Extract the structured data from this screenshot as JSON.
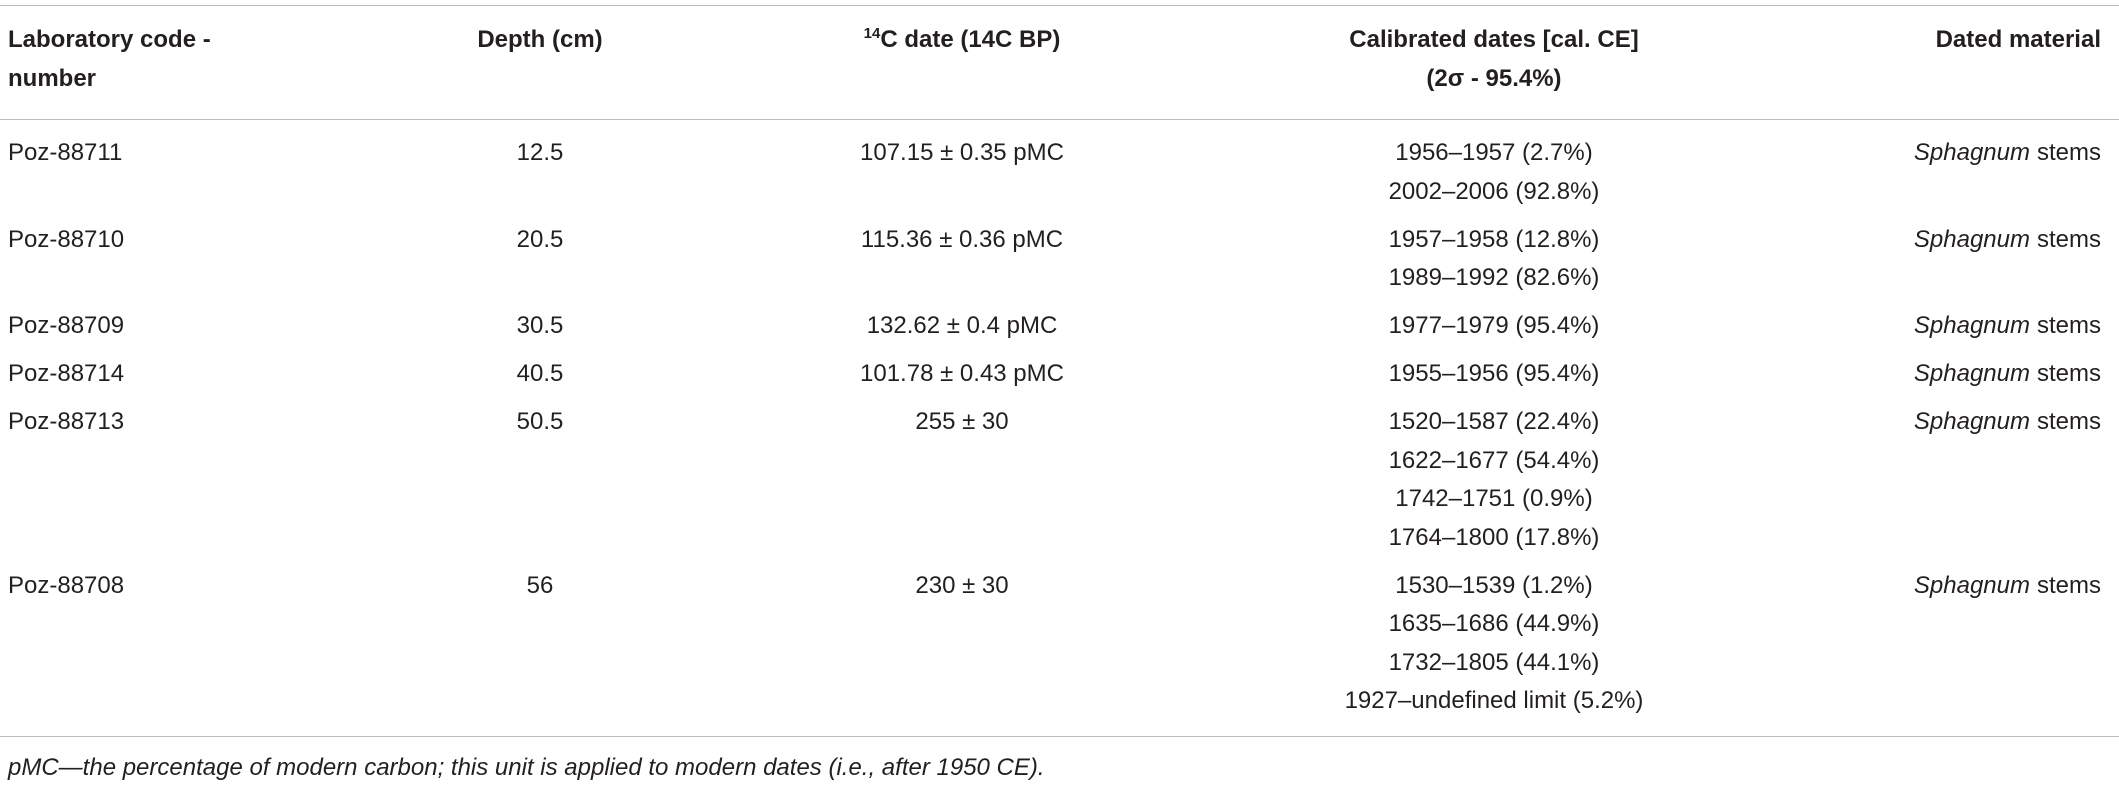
{
  "table": {
    "headers": [
      {
        "text": "Laboratory code - number"
      },
      {
        "text": "Depth (cm)"
      },
      {
        "sup": "14",
        "text": "C date (14C BP)"
      },
      {
        "text": "Calibrated dates [cal. CE] (2σ - 95.4%)"
      },
      {
        "text": "Dated material"
      }
    ],
    "rows": [
      {
        "code": "Poz-88711",
        "depth": 12.5,
        "date": "107.15 ± 0.35 pMC",
        "calibrated": [
          "1956–1957 (2.7%)",
          "2002–2006 (92.8%)"
        ],
        "material": {
          "genus": "Sphagnum",
          "rest": "stems"
        }
      },
      {
        "code": "Poz-88710",
        "depth": 20.5,
        "date": "115.36 ± 0.36 pMC",
        "calibrated": [
          "1957–1958 (12.8%)",
          "1989–1992 (82.6%)"
        ],
        "material": {
          "genus": "Sphagnum",
          "rest": "stems"
        }
      },
      {
        "code": "Poz-88709",
        "depth": 30.5,
        "date": "132.62 ± 0.4 pMC",
        "calibrated": [
          "1977–1979 (95.4%)"
        ],
        "material": {
          "genus": "Sphagnum",
          "rest": "stems"
        }
      },
      {
        "code": "Poz-88714",
        "depth": 40.5,
        "date": "101.78 ± 0.43 pMC",
        "calibrated": [
          "1955–1956 (95.4%)"
        ],
        "material": {
          "genus": "Sphagnum",
          "rest": "stems"
        }
      },
      {
        "code": "Poz-88713",
        "depth": 50.5,
        "date": "255 ± 30",
        "calibrated": [
          "1520–1587 (22.4%)",
          "1622–1677 (54.4%)",
          "1742–1751 (0.9%)",
          "1764–1800 (17.8%)"
        ],
        "material": {
          "genus": "Sphagnum",
          "rest": "stems"
        }
      },
      {
        "code": "Poz-88708",
        "depth": 56,
        "date": "230 ± 30",
        "calibrated": [
          "1530–1539 (1.2%)",
          "1635–1686 (44.9%)",
          "1732–1805 (44.1%)",
          "1927–undefined limit (5.2%)"
        ],
        "material": {
          "genus": "Sphagnum",
          "rest": "stems"
        }
      }
    ],
    "footnote": "pMC—the percentage of modern carbon; this unit is applied to modern dates (i.e., after 1950 CE)."
  }
}
